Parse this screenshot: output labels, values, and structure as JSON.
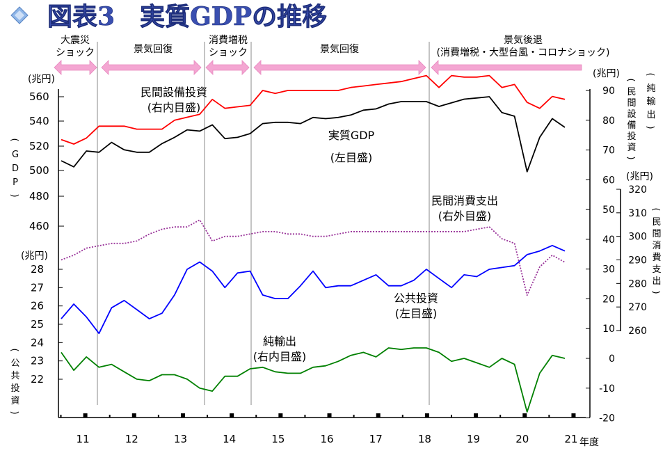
{
  "header": {
    "title": "図表3　実質GDPの推移"
  },
  "chart_data": {
    "type": "line",
    "xlabel": "年度",
    "x_ticks": [
      "11",
      "12",
      "13",
      "14",
      "15",
      "16",
      "17",
      "18",
      "19",
      "20",
      "21"
    ],
    "phases": [
      {
        "label": "大震災\nショック"
      },
      {
        "label": "景気回復"
      },
      {
        "label": "消費増税\nショック"
      },
      {
        "label": "景気回復"
      },
      {
        "label": "景気後退\n(消費増税・大型台風・コロナショック)"
      }
    ],
    "axes": {
      "left_upper": {
        "unit": "(兆円)",
        "label": "(GDP)",
        "ticks": [
          460,
          480,
          500,
          520,
          540,
          560
        ]
      },
      "left_lower": {
        "unit": "(兆円)",
        "label": "(公共投資)",
        "ticks": [
          22,
          23,
          24,
          25,
          26,
          27,
          28
        ]
      },
      "right_inner": {
        "unit": "(兆円)",
        "label": "(純輸出)",
        "label2": "(民間設備投資)",
        "ticks": [
          -20,
          -10,
          0,
          10,
          20,
          30,
          40,
          50,
          60,
          70,
          80,
          90
        ]
      },
      "right_outer": {
        "unit": "(兆円)",
        "label": "(民間消費支出)",
        "ticks": [
          260,
          270,
          280,
          290,
          300,
          310,
          320
        ]
      }
    },
    "series": [
      {
        "name": "実質GDP",
        "note": "(左目盛)",
        "color": "#000000",
        "values": [
          508,
          503,
          516,
          515,
          523,
          517,
          515,
          515,
          522,
          527,
          533,
          532,
          537,
          526,
          527,
          530,
          538,
          539,
          539,
          538,
          543,
          542,
          543,
          545,
          549,
          550,
          554,
          556,
          556,
          556,
          552,
          555,
          558,
          559,
          560,
          547,
          544,
          499,
          527,
          542,
          535
        ]
      },
      {
        "name": "民間設備投資",
        "note": "(右内目盛)",
        "color": "#ff0000",
        "values": [
          73.5,
          72,
          74,
          78,
          78,
          78,
          77,
          77,
          77,
          80,
          81,
          82,
          87,
          84,
          84.5,
          85,
          90,
          89,
          90,
          90,
          90,
          90,
          90,
          91,
          91.5,
          92,
          92.5,
          93,
          94,
          95,
          91,
          95,
          94.5,
          94.5,
          95,
          91,
          92,
          86,
          84,
          88,
          87
        ]
      },
      {
        "name": "民間消費支出",
        "note": "(右外目盛)",
        "color": "#993399",
        "values": [
          290,
          292,
          295,
          296,
          297,
          297,
          298,
          301,
          303,
          304,
          304,
          307,
          298,
          300,
          300,
          301,
          302,
          302,
          301,
          301,
          300,
          300,
          301,
          302,
          302,
          302,
          302,
          302,
          302,
          302,
          302,
          302,
          302,
          303,
          304,
          299,
          297,
          275,
          287,
          292,
          289
        ]
      },
      {
        "name": "公共投資",
        "note": "(左目盛)",
        "color": "#0000ff",
        "values": [
          25.3,
          26.1,
          25.4,
          24.5,
          25.9,
          26.3,
          25.8,
          25.3,
          25.6,
          26.6,
          28.0,
          28.4,
          27.9,
          27.0,
          27.8,
          27.9,
          26.6,
          26.4,
          26.4,
          27.1,
          27.9,
          27.0,
          27.1,
          27.1,
          27.4,
          27.7,
          27.1,
          27.1,
          27.4,
          28.0,
          27.5,
          27.0,
          27.7,
          27.6,
          28.0,
          28.1,
          28.2,
          28.8,
          29.0,
          29.3,
          29.0
        ]
      },
      {
        "name": "純輸出",
        "note": "(右内目盛)",
        "color": "#008000",
        "values": [
          2,
          -4,
          0.5,
          -3,
          -2,
          -4.5,
          -7,
          -7.5,
          -5.5,
          -5.5,
          -7,
          -10,
          -11,
          -6,
          -6,
          -3.5,
          -3,
          -4.5,
          -5,
          -5,
          -3,
          -2.5,
          -1,
          1,
          2,
          0.5,
          3.5,
          3,
          3.5,
          3.5,
          2,
          -1,
          0,
          -1.5,
          -3,
          0,
          -2,
          -18,
          -5,
          1,
          0
        ]
      }
    ],
    "legend": "inline annotations",
    "grid": false
  }
}
